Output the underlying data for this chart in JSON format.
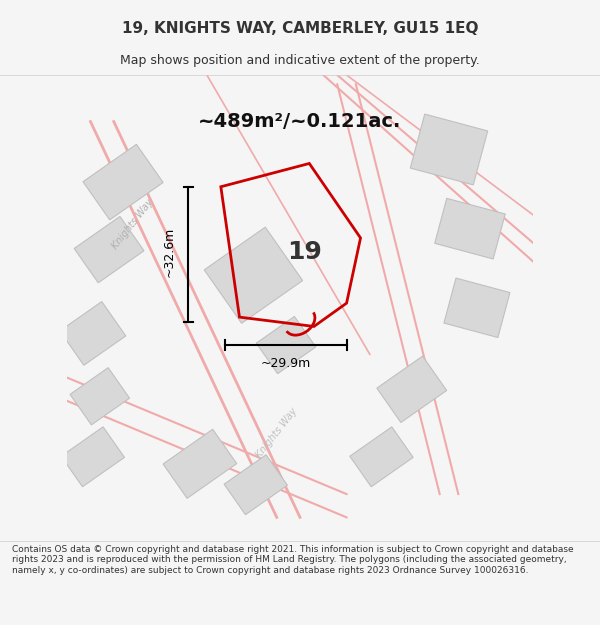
{
  "title_line1": "19, KNIGHTS WAY, CAMBERLEY, GU15 1EQ",
  "title_line2": "Map shows position and indicative extent of the property.",
  "area_text": "~489m²/~0.121ac.",
  "dim_vertical": "~32.6m",
  "dim_horizontal": "~29.9m",
  "number_label": "19",
  "footer_text": "Contains OS data © Crown copyright and database right 2021. This information is subject to Crown copyright and database rights 2023 and is reproduced with the permission of HM Land Registry. The polygons (including the associated geometry, namely x, y co-ordinates) are subject to Crown copyright and database rights 2023 Ordnance Survey 100026316.",
  "bg_color": "#f5f5f5",
  "map_bg_color": "#f0eeee",
  "plot_outline_color": "#cc0000",
  "road_color": "#f0aaaa",
  "building_color": "#d8d8d8",
  "building_outline": "#c0c0c0",
  "dim_line_color": "#000000",
  "road_label_color": "#b0b0b0",
  "road_label2_color": "#c0c0c0",
  "title_color": "#333333",
  "footer_color": "#333333",
  "number_color": "#333333",
  "area_color": "#111111"
}
